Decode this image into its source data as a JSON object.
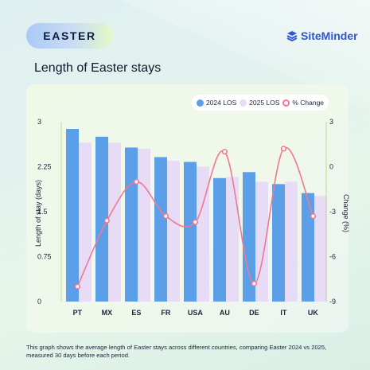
{
  "header": {
    "badge": "EASTER",
    "brand": "SiteMinder",
    "title": "Length of Easter stays"
  },
  "colors": {
    "series_2024": "#5b9fe8",
    "series_2025": "#e7dbf6",
    "series_change": "#f07893",
    "brand": "#2f55d4"
  },
  "chart_data": {
    "type": "bar",
    "categories": [
      "PT",
      "MX",
      "ES",
      "FR",
      "USA",
      "AU",
      "DE",
      "IT",
      "UK"
    ],
    "series": [
      {
        "name": "2024 LOS",
        "type": "bar",
        "axis": "left",
        "values": [
          2.88,
          2.75,
          2.57,
          2.41,
          2.33,
          2.06,
          2.16,
          1.96,
          1.81
        ]
      },
      {
        "name": "2025 LOS",
        "type": "bar",
        "axis": "left",
        "values": [
          2.65,
          2.65,
          2.55,
          2.35,
          2.25,
          2.08,
          2.0,
          2.0,
          1.76
        ]
      },
      {
        "name": "% Change",
        "type": "line",
        "axis": "right",
        "values": [
          -8.0,
          -3.6,
          -1.0,
          -3.3,
          -3.7,
          1.0,
          -7.8,
          1.2,
          -3.3
        ]
      }
    ],
    "ylabel": "Length of stay (days)",
    "y2label": "Change (%)",
    "ylim": [
      0,
      3
    ],
    "y2lim": [
      -9,
      3
    ],
    "yticks": [
      "0",
      "0.75",
      "1.5",
      "2.25",
      "3"
    ],
    "y2ticks": [
      "-9",
      "-6",
      "-3",
      "0",
      "3"
    ],
    "legend": "top-right",
    "grid": false
  },
  "footnote": "This graph shows the average length of Easter stays across different countries, comparing Easter 2024 vs 2025, measured 30 days before each period."
}
